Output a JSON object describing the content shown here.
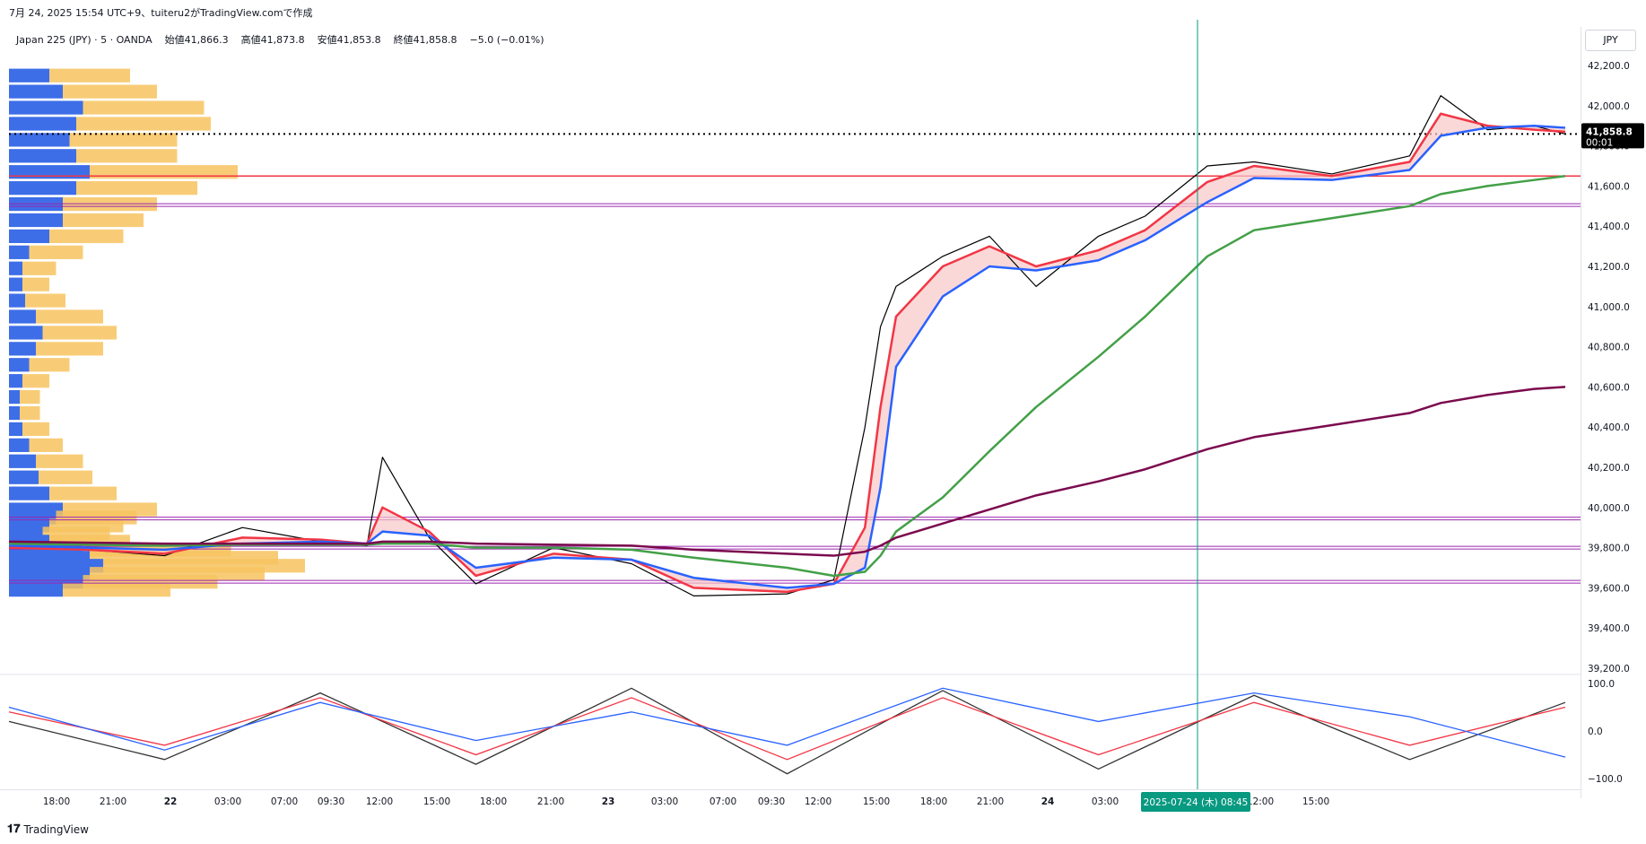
{
  "header": {
    "caption": "7月 24, 2025 15:54 UTC+9、tuiteru2がTradingView.comで作成"
  },
  "legend": {
    "symbol": "Japan 225 (JPY) · 5 · OANDA",
    "open_label": "始値",
    "open_value": "41,866.3",
    "high_label": "高値",
    "high_value": "41,873.8",
    "low_label": "安値",
    "low_value": "41,853.8",
    "close_label": "終値",
    "close_value": "41,858.8",
    "change": "−5.0 (−0.01%)"
  },
  "price_axis": {
    "currency": "JPY",
    "current_price": "41,858.8",
    "countdown": "00:01"
  },
  "cursor": {
    "date_label": "2025-07-24 (木)",
    "time_label": "08:45"
  },
  "branding": {
    "logo_text": "TradingView"
  },
  "colors": {
    "candles": "#000000",
    "ema_fast": "#f23645",
    "ema_mid": "#2962ff",
    "ema_slow": "#43a047",
    "ema_long": "#7b0a4e",
    "cloud_fill": "#f8c8c8",
    "hline_red": "#f23645",
    "hline_purple": "#9c27b0",
    "volume_up": "#3d6ee8",
    "volume_down": "#f7c35f",
    "cursor_line": "#089981"
  },
  "chart_data": [
    {
      "type": "line",
      "panel": "price",
      "ylim": [
        39200,
        42200
      ],
      "y_ticks": [
        "42,200.0",
        "42,000.0",
        "41,800.0",
        "41,600.0",
        "41,400.0",
        "41,200.0",
        "41,000.0",
        "40,800.0",
        "40,600.0",
        "40,400.0",
        "40,200.0",
        "40,000.0",
        "39,800.0",
        "39,600.0",
        "39,400.0",
        "39,200.0"
      ],
      "x_ticks": [
        "18:00",
        "21:00",
        "22",
        "03:00",
        "07:00",
        "09:30",
        "12:00",
        "15:00",
        "18:00",
        "21:00",
        "23",
        "03:00",
        "07:00",
        "09:30",
        "12:00",
        "15:00",
        "18:00",
        "21:00",
        "24",
        "03:00",
        "12:00",
        "15:00"
      ],
      "x": [
        0,
        0.05,
        0.1,
        0.15,
        0.2,
        0.23,
        0.24,
        0.27,
        0.3,
        0.35,
        0.4,
        0.44,
        0.5,
        0.53,
        0.55,
        0.56,
        0.57,
        0.6,
        0.63,
        0.66,
        0.7,
        0.73,
        0.77,
        0.8,
        0.85,
        0.9,
        0.92,
        0.95,
        0.98,
        1.0
      ],
      "series": [
        {
          "key": "close",
          "values": [
            39810,
            39790,
            39760,
            39900,
            39830,
            39810,
            40250,
            39850,
            39620,
            39800,
            39720,
            39560,
            39570,
            39640,
            40400,
            40900,
            41100,
            41250,
            41350,
            41100,
            41350,
            41450,
            41700,
            41720,
            41660,
            41750,
            42050,
            41880,
            41900,
            41858.8
          ]
        },
        {
          "key": "ema_fast",
          "values": [
            39800,
            39790,
            39770,
            39850,
            39840,
            39820,
            40000,
            39880,
            39660,
            39770,
            39740,
            39600,
            39580,
            39620,
            39900,
            40500,
            40950,
            41200,
            41300,
            41200,
            41280,
            41380,
            41620,
            41700,
            41650,
            41720,
            41960,
            41900,
            41880,
            41870
          ]
        },
        {
          "key": "ema_mid",
          "values": [
            39810,
            39800,
            39790,
            39820,
            39830,
            39820,
            39880,
            39860,
            39700,
            39750,
            39740,
            39650,
            39600,
            39620,
            39700,
            40100,
            40700,
            41050,
            41200,
            41180,
            41230,
            41330,
            41520,
            41640,
            41630,
            41680,
            41850,
            41890,
            41900,
            41890
          ]
        },
        {
          "key": "ema_slow",
          "values": [
            39820,
            39815,
            39810,
            39815,
            39815,
            39815,
            39820,
            39820,
            39800,
            39800,
            39790,
            39750,
            39700,
            39660,
            39680,
            39760,
            39880,
            40050,
            40280,
            40500,
            40750,
            40950,
            41250,
            41380,
            41440,
            41500,
            41560,
            41600,
            41630,
            41650
          ]
        },
        {
          "key": "ema_long",
          "values": [
            39830,
            39825,
            39820,
            39820,
            39820,
            39820,
            39830,
            39830,
            39820,
            39815,
            39810,
            39790,
            39770,
            39760,
            39780,
            39810,
            39850,
            39920,
            39990,
            40060,
            40130,
            40190,
            40290,
            40350,
            40410,
            40470,
            40520,
            40560,
            40590,
            40600
          ]
        }
      ],
      "horizontal_lines": [
        {
          "price": 41858.8,
          "style": "dotted",
          "color": "black"
        },
        {
          "price": 41650,
          "style": "solid",
          "color": "red"
        },
        {
          "price": 41505,
          "style": "double",
          "color": "purple"
        },
        {
          "price": 39945,
          "style": "double",
          "color": "purple"
        },
        {
          "price": 39800,
          "style": "double",
          "color": "purple"
        },
        {
          "price": 39630,
          "style": "double",
          "color": "purple"
        }
      ]
    },
    {
      "type": "bar",
      "panel": "volume_profile",
      "orientation": "horizontal",
      "ylim": [
        39200,
        42200
      ],
      "series": [
        {
          "key": "up",
          "values": [
            0.3,
            0.4,
            0.55,
            0.5,
            0.45,
            0.5,
            0.6,
            0.5,
            0.4,
            0.4,
            0.3,
            0.15,
            0.1,
            0.1,
            0.12,
            0.2,
            0.25,
            0.2,
            0.15,
            0.1,
            0.08,
            0.08,
            0.1,
            0.15,
            0.2,
            0.22,
            0.3,
            0.4,
            0.35,
            0.3,
            0.25,
            0.3,
            0.55,
            0.6,
            0.7,
            0.6,
            0.55,
            0.4
          ]
        },
        {
          "key": "down",
          "values": [
            0.6,
            0.7,
            0.9,
            1.0,
            0.8,
            0.75,
            1.1,
            0.9,
            0.7,
            0.6,
            0.55,
            0.4,
            0.25,
            0.2,
            0.3,
            0.5,
            0.55,
            0.5,
            0.3,
            0.2,
            0.15,
            0.15,
            0.2,
            0.25,
            0.35,
            0.4,
            0.5,
            0.7,
            0.6,
            0.55,
            0.5,
            0.6,
            1.1,
            1.4,
            1.5,
            1.3,
            1.0,
            0.8
          ]
        }
      ],
      "price_bins": [
        42150,
        42070,
        41990,
        41910,
        41830,
        41750,
        41670,
        41590,
        41510,
        41430,
        41350,
        41270,
        41190,
        41110,
        41030,
        40950,
        40870,
        40790,
        40710,
        40630,
        40550,
        40470,
        40390,
        40310,
        40230,
        40150,
        40070,
        39990,
        39950,
        39910,
        39870,
        39830,
        39790,
        39750,
        39710,
        39670,
        39630,
        39590
      ]
    },
    {
      "type": "line",
      "panel": "oscillator",
      "ylim": [
        -100,
        100
      ],
      "y_ticks": [
        "100.0",
        "0.0",
        "−100.0"
      ],
      "x": [
        0,
        0.1,
        0.2,
        0.3,
        0.4,
        0.5,
        0.6,
        0.7,
        0.8,
        0.9,
        1.0
      ],
      "series": [
        {
          "key": "fast",
          "values": [
            20,
            -60,
            80,
            -70,
            90,
            -90,
            85,
            -80,
            75,
            -60,
            60
          ]
        },
        {
          "key": "signal",
          "values": [
            40,
            -30,
            70,
            -50,
            70,
            -60,
            70,
            -50,
            60,
            -30,
            50
          ]
        },
        {
          "key": "slow",
          "values": [
            50,
            -40,
            60,
            -20,
            40,
            -30,
            90,
            20,
            80,
            30,
            -55
          ]
        }
      ]
    }
  ]
}
